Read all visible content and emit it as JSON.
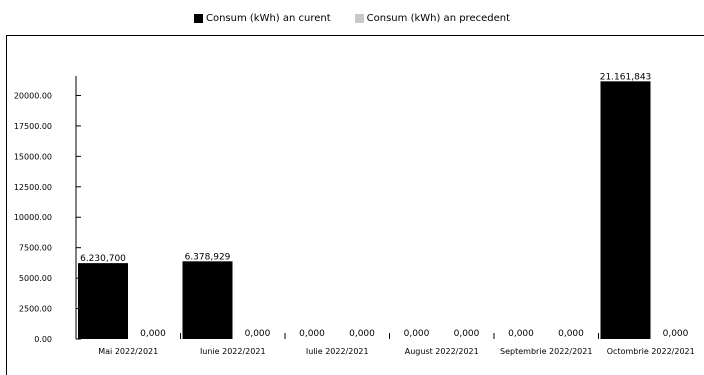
{
  "chart_data": {
    "type": "bar",
    "categories": [
      "Mai 2022/2021",
      "Iunie 2022/2021",
      "Iulie 2022/2021",
      "August 2022/2021",
      "Septembrie 2022/2021",
      "Octombrie 2022/2021"
    ],
    "series": [
      {
        "name": "Consum (kWh) an curent",
        "values": [
          6230.7,
          6378.929,
          0,
          0,
          0,
          21161.843
        ],
        "labels": [
          "6.230,700",
          "6.378,929",
          "0,000",
          "0,000",
          "0,000",
          "21.161,843"
        ],
        "color": "#000000"
      },
      {
        "name": "Consum (kWh) an precedent",
        "values": [
          0,
          0,
          0,
          0,
          0,
          0
        ],
        "labels": [
          "0,000",
          "0,000",
          "0,000",
          "0,000",
          "0,000",
          "0,000"
        ],
        "color": "#c8c8c8"
      }
    ],
    "yticks": [
      "0.00",
      "2500.00",
      "5000.00",
      "7500.00",
      "10000.00",
      "12500.00",
      "15000.00",
      "17500.00",
      "20000.00"
    ],
    "ylim": [
      0,
      21600
    ],
    "legend_position": "top",
    "grid": false
  }
}
